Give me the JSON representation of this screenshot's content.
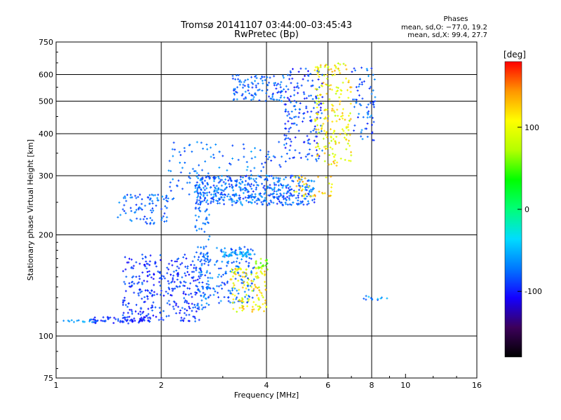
{
  "chart_data": {
    "type": "scatter",
    "title": "Tromsø 20141107 03:44:00–03:45:43",
    "subtitle": "RwPretec (Bp)",
    "stats": {
      "heading": "Phases",
      "line1": "mean, sd,O: −77.0, 19.2",
      "line2": "mean, sd,X:  99.4, 27.7"
    },
    "xlabel": "Frequency [MHz]",
    "ylabel": "Stationary phase Virtual Height [km]",
    "x_scale": "log",
    "y_scale": "log",
    "xlim": [
      1,
      16
    ],
    "ylim": [
      75,
      750
    ],
    "x_ticks": [
      1,
      2,
      4,
      6,
      8,
      10,
      16
    ],
    "y_ticks": [
      75,
      100,
      200,
      300,
      400,
      500,
      600,
      750
    ],
    "x_gridlines": [
      2,
      4,
      6,
      8
    ],
    "y_gridlines": [
      100,
      200,
      300,
      400,
      500,
      600
    ],
    "grid": true,
    "colorbar": {
      "label": "[deg]",
      "ticks": [
        100,
        0,
        -100
      ],
      "range": [
        -180,
        180
      ],
      "colors": [
        "#000000",
        "#3c005a",
        "#1400ff",
        "#0078ff",
        "#00dcff",
        "#00ff78",
        "#00ff00",
        "#b4ff00",
        "#ffff00",
        "#ff9600",
        "#ff0000"
      ]
    },
    "point_clusters": [
      {
        "name": "low-layer traces",
        "x": [
          1.55,
          2.6
        ],
        "y": [
          110,
          175
        ],
        "phase": [
          -110,
          -75
        ],
        "count": 320
      },
      {
        "name": "low-layer flat",
        "x": [
          1.25,
          1.9
        ],
        "y": [
          109,
          114
        ],
        "phase": [
          -110,
          -80
        ],
        "count": 70
      },
      {
        "name": "low-layer sparse",
        "x": [
          1.05,
          1.3
        ],
        "y": [
          110,
          112
        ],
        "phase": [
          -70,
          -50
        ],
        "count": 14
      },
      {
        "name": "low-layer vertical",
        "x": [
          2.5,
          2.75
        ],
        "y": [
          120,
          290
        ],
        "phase": [
          -90,
          -60
        ],
        "count": 90
      },
      {
        "name": "upper-low cluster",
        "x": [
          2.6,
          3.7
        ],
        "y": [
          125,
          185
        ],
        "phase": [
          -95,
          -55
        ],
        "count": 180
      },
      {
        "name": "upper-low cyan band",
        "x": [
          3.0,
          3.7
        ],
        "y": [
          172,
          178
        ],
        "phase": [
          -70,
          -40
        ],
        "count": 40
      },
      {
        "name": "X-mode low cluster",
        "x": [
          3.15,
          4.0
        ],
        "y": [
          118,
          160
        ],
        "phase": [
          70,
          140
        ],
        "count": 120
      },
      {
        "name": "X-mode low top",
        "x": [
          3.7,
          4.05
        ],
        "y": [
          155,
          170
        ],
        "phase": [
          40,
          80
        ],
        "count": 18
      },
      {
        "name": "mid cluster",
        "x": [
          1.5,
          2.1
        ],
        "y": [
          215,
          265
        ],
        "phase": [
          -95,
          -60
        ],
        "count": 90
      },
      {
        "name": "main F trace",
        "x": [
          2.5,
          5.5
        ],
        "y": [
          245,
          300
        ],
        "phase": [
          -100,
          -55
        ],
        "count": 420
      },
      {
        "name": "main F scatter",
        "x": [
          2.1,
          4.5
        ],
        "y": [
          255,
          380
        ],
        "phase": [
          -95,
          -55
        ],
        "count": 140
      },
      {
        "name": "upper spread",
        "x": [
          3.2,
          4.5
        ],
        "y": [
          500,
          600
        ],
        "phase": [
          -100,
          -60
        ],
        "count": 110
      },
      {
        "name": "upper spread 2",
        "x": [
          4.5,
          5.8
        ],
        "y": [
          330,
          640
        ],
        "phase": [
          -110,
          -70
        ],
        "count": 170
      },
      {
        "name": "X-mode upper",
        "x": [
          5.5,
          7.0
        ],
        "y": [
          320,
          650
        ],
        "phase": [
          70,
          140
        ],
        "count": 200
      },
      {
        "name": "X-mode cusp",
        "x": [
          4.8,
          6.2
        ],
        "y": [
          260,
          300
        ],
        "phase": [
          90,
          150
        ],
        "count": 40
      },
      {
        "name": "far right column",
        "x": [
          7.0,
          8.2
        ],
        "y": [
          380,
          640
        ],
        "phase": [
          -100,
          -60
        ],
        "count": 70
      },
      {
        "name": "right sparse",
        "x": [
          7.5,
          9.0
        ],
        "y": [
          128,
          132
        ],
        "phase": [
          -90,
          -40
        ],
        "count": 12
      }
    ]
  }
}
